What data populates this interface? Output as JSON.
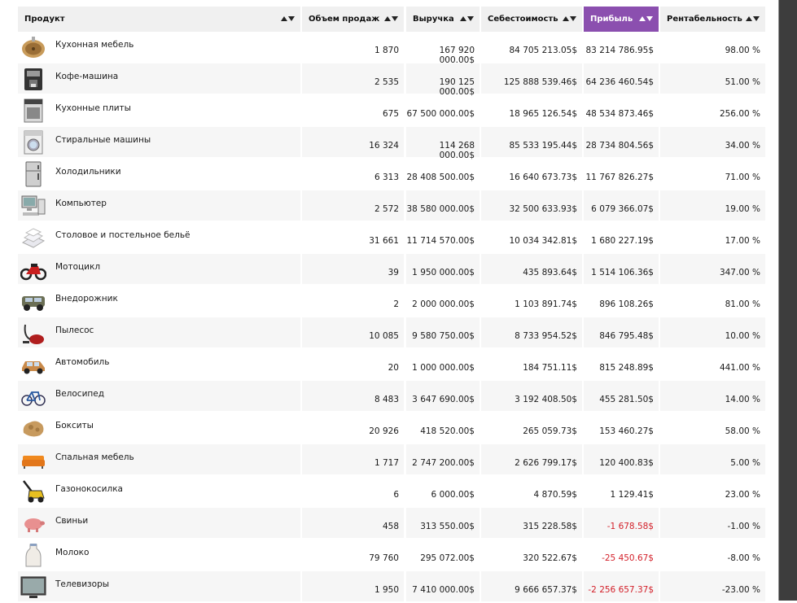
{
  "columns": {
    "product": "Продукт",
    "volume": "Объем продаж",
    "revenue": "Выручка",
    "cost": "Себестоимость",
    "profit": "Прибыль",
    "margin": "Рентабельность"
  },
  "colors": {
    "header_bg": "#f0f0f0",
    "active_header_bg": "#8b4faf",
    "negative": "#d3202a"
  },
  "rows": [
    {
      "name": "Кухонная мебель",
      "icon": "kitchen-sink-icon",
      "volume": "1 870",
      "revenue": "167 920 000.00$",
      "cost": "84 705 213.05$",
      "profit": "83 214 786.95$",
      "margin": "98.00 %",
      "negative": false
    },
    {
      "name": "Кофе-машина",
      "icon": "coffee-machine-icon",
      "volume": "2 535",
      "revenue": "190 125 000.00$",
      "cost": "125 888 539.46$",
      "profit": "64 236 460.54$",
      "margin": "51.00 %",
      "negative": false
    },
    {
      "name": "Кухонные плиты",
      "icon": "stove-icon",
      "volume": "675",
      "revenue": "67 500 000.00$",
      "cost": "18 965 126.54$",
      "profit": "48 534 873.46$",
      "margin": "256.00 %",
      "negative": false
    },
    {
      "name": "Стиральные машины",
      "icon": "washing-machine-icon",
      "volume": "16 324",
      "revenue": "114 268 000.00$",
      "cost": "85 533 195.44$",
      "profit": "28 734 804.56$",
      "margin": "34.00 %",
      "negative": false
    },
    {
      "name": "Холодильники",
      "icon": "fridge-icon",
      "volume": "6 313",
      "revenue": "28 408 500.00$",
      "cost": "16 640 673.73$",
      "profit": "11 767 826.27$",
      "margin": "71.00 %",
      "negative": false
    },
    {
      "name": "Компьютер",
      "icon": "computer-icon",
      "volume": "2 572",
      "revenue": "38 580 000.00$",
      "cost": "32 500 633.93$",
      "profit": "6 079 366.07$",
      "margin": "19.00 %",
      "negative": false
    },
    {
      "name": "Столовое и постельное бельё",
      "icon": "linen-icon",
      "volume": "31 661",
      "revenue": "11 714 570.00$",
      "cost": "10 034 342.81$",
      "profit": "1 680 227.19$",
      "margin": "17.00 %",
      "negative": false
    },
    {
      "name": "Мотоцикл",
      "icon": "motorcycle-icon",
      "volume": "39",
      "revenue": "1 950 000.00$",
      "cost": "435 893.64$",
      "profit": "1 514 106.36$",
      "margin": "347.00 %",
      "negative": false
    },
    {
      "name": "Внедорожник",
      "icon": "suv-icon",
      "volume": "2",
      "revenue": "2 000 000.00$",
      "cost": "1 103 891.74$",
      "profit": "896 108.26$",
      "margin": "81.00 %",
      "negative": false
    },
    {
      "name": "Пылесос",
      "icon": "vacuum-cleaner-icon",
      "volume": "10 085",
      "revenue": "9 580 750.00$",
      "cost": "8 733 954.52$",
      "profit": "846 795.48$",
      "margin": "10.00 %",
      "negative": false
    },
    {
      "name": "Автомобиль",
      "icon": "car-icon",
      "volume": "20",
      "revenue": "1 000 000.00$",
      "cost": "184 751.11$",
      "profit": "815 248.89$",
      "margin": "441.00 %",
      "negative": false
    },
    {
      "name": "Велосипед",
      "icon": "bicycle-icon",
      "volume": "8 483",
      "revenue": "3 647 690.00$",
      "cost": "3 192 408.50$",
      "profit": "455 281.50$",
      "margin": "14.00 %",
      "negative": false
    },
    {
      "name": "Бокситы",
      "icon": "bauxite-icon",
      "volume": "20 926",
      "revenue": "418 520.00$",
      "cost": "265 059.73$",
      "profit": "153 460.27$",
      "margin": "58.00 %",
      "negative": false
    },
    {
      "name": "Спальная мебель",
      "icon": "sofa-icon",
      "volume": "1 717",
      "revenue": "2 747 200.00$",
      "cost": "2 626 799.17$",
      "profit": "120 400.83$",
      "margin": "5.00 %",
      "negative": false
    },
    {
      "name": "Газонокосилка",
      "icon": "lawn-mower-icon",
      "volume": "6",
      "revenue": "6 000.00$",
      "cost": "4 870.59$",
      "profit": "1 129.41$",
      "margin": "23.00 %",
      "negative": false
    },
    {
      "name": "Свиньи",
      "icon": "pig-icon",
      "volume": "458",
      "revenue": "313 550.00$",
      "cost": "315 228.58$",
      "profit": "-1 678.58$",
      "margin": "-1.00 %",
      "negative": true
    },
    {
      "name": "Молоко",
      "icon": "milk-bottle-icon",
      "volume": "79 760",
      "revenue": "295 072.00$",
      "cost": "320 522.67$",
      "profit": "-25 450.67$",
      "margin": "-8.00 %",
      "negative": true
    },
    {
      "name": "Телевизоры",
      "icon": "tv-icon",
      "volume": "1 950",
      "revenue": "7 410 000.00$",
      "cost": "9 666 657.37$",
      "profit": "-2 256 657.37$",
      "margin": "-23.00 %",
      "negative": true
    }
  ]
}
